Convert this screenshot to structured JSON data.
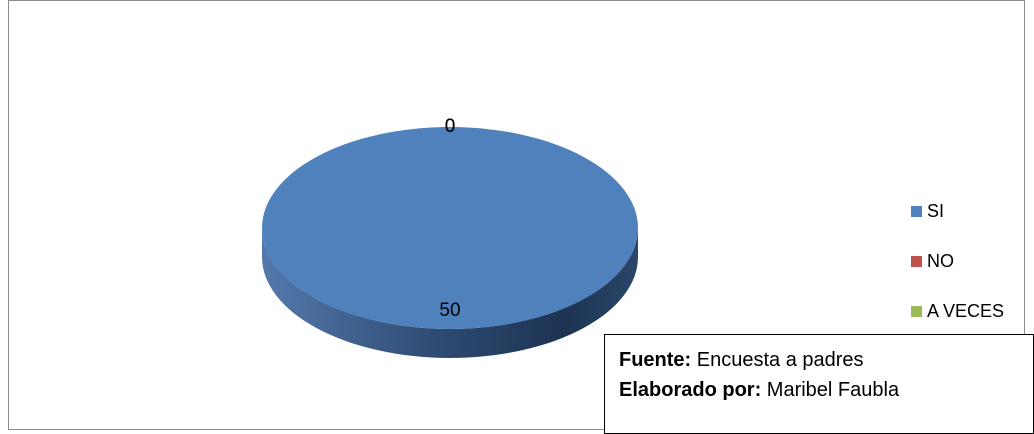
{
  "chart_data": {
    "type": "pie",
    "categories": [
      "SI",
      "NO",
      "A VECES"
    ],
    "values": [
      50,
      0,
      0
    ],
    "data_labels": [
      "50",
      "0",
      "0"
    ],
    "colors": [
      "#4F81BD",
      "#C0504D",
      "#9BBB59"
    ],
    "legend_position": "right",
    "style": "3d"
  },
  "note": {
    "source_label": "Fuente:",
    "source_text": " Encuesta  a padres",
    "author_label": "Elaborado por:",
    "author_text": " Maribel Faubla"
  }
}
